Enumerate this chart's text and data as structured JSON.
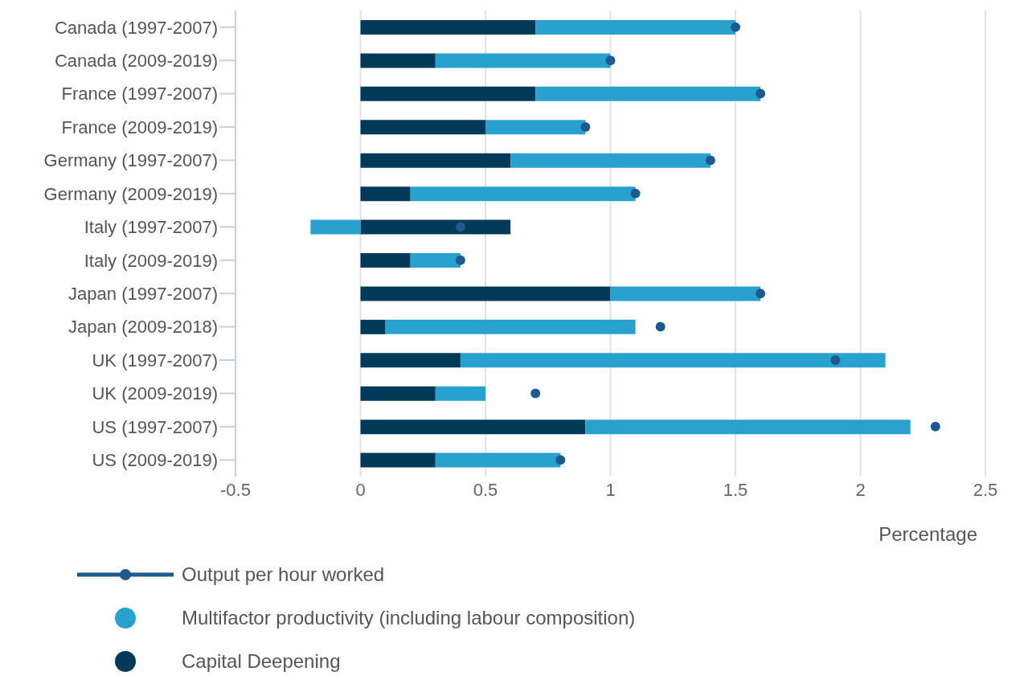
{
  "chart_data": {
    "type": "bar",
    "orientation": "horizontal",
    "stacked": true,
    "xlabel": "Percentage",
    "categories": [
      "Canada (1997-2007)",
      "Canada (2009-2019)",
      "France (1997-2007)",
      "France (2009-2019)",
      "Germany (1997-2007)",
      "Germany (2009-2019)",
      "Italy (1997-2007)",
      "Italy (2009-2019)",
      "Japan (1997-2007)",
      "Japan (2009-2018)",
      "UK (1997-2007)",
      "UK (2009-2019)",
      "US (1997-2007)",
      "US (2009-2019)"
    ],
    "series": [
      {
        "name": "Capital Deepening",
        "color": "#003a58",
        "values": [
          0.7,
          0.3,
          0.7,
          0.5,
          0.6,
          0.2,
          0.6,
          0.2,
          1.0,
          0.1,
          0.4,
          0.3,
          0.9,
          0.3
        ]
      },
      {
        "name": "Multifactor productivity (including labour composition)",
        "color": "#29a1cf",
        "values": [
          0.8,
          0.7,
          0.9,
          0.4,
          0.8,
          0.9,
          -0.2,
          0.2,
          0.6,
          1.0,
          1.7,
          0.2,
          1.3,
          0.5
        ]
      },
      {
        "name": "Output per hour worked",
        "type": "scatter",
        "color": "#1f5a8e",
        "values": [
          1.5,
          1.0,
          1.6,
          0.9,
          1.4,
          1.1,
          0.4,
          0.4,
          1.6,
          1.2,
          1.9,
          0.7,
          2.3,
          0.8
        ]
      }
    ],
    "xlim": [
      -0.5,
      2.5
    ],
    "xticks": [
      -0.5,
      0,
      0.5,
      1,
      1.5,
      2,
      2.5
    ],
    "grid": "x",
    "legend": "bottom left",
    "marker": "circle"
  }
}
